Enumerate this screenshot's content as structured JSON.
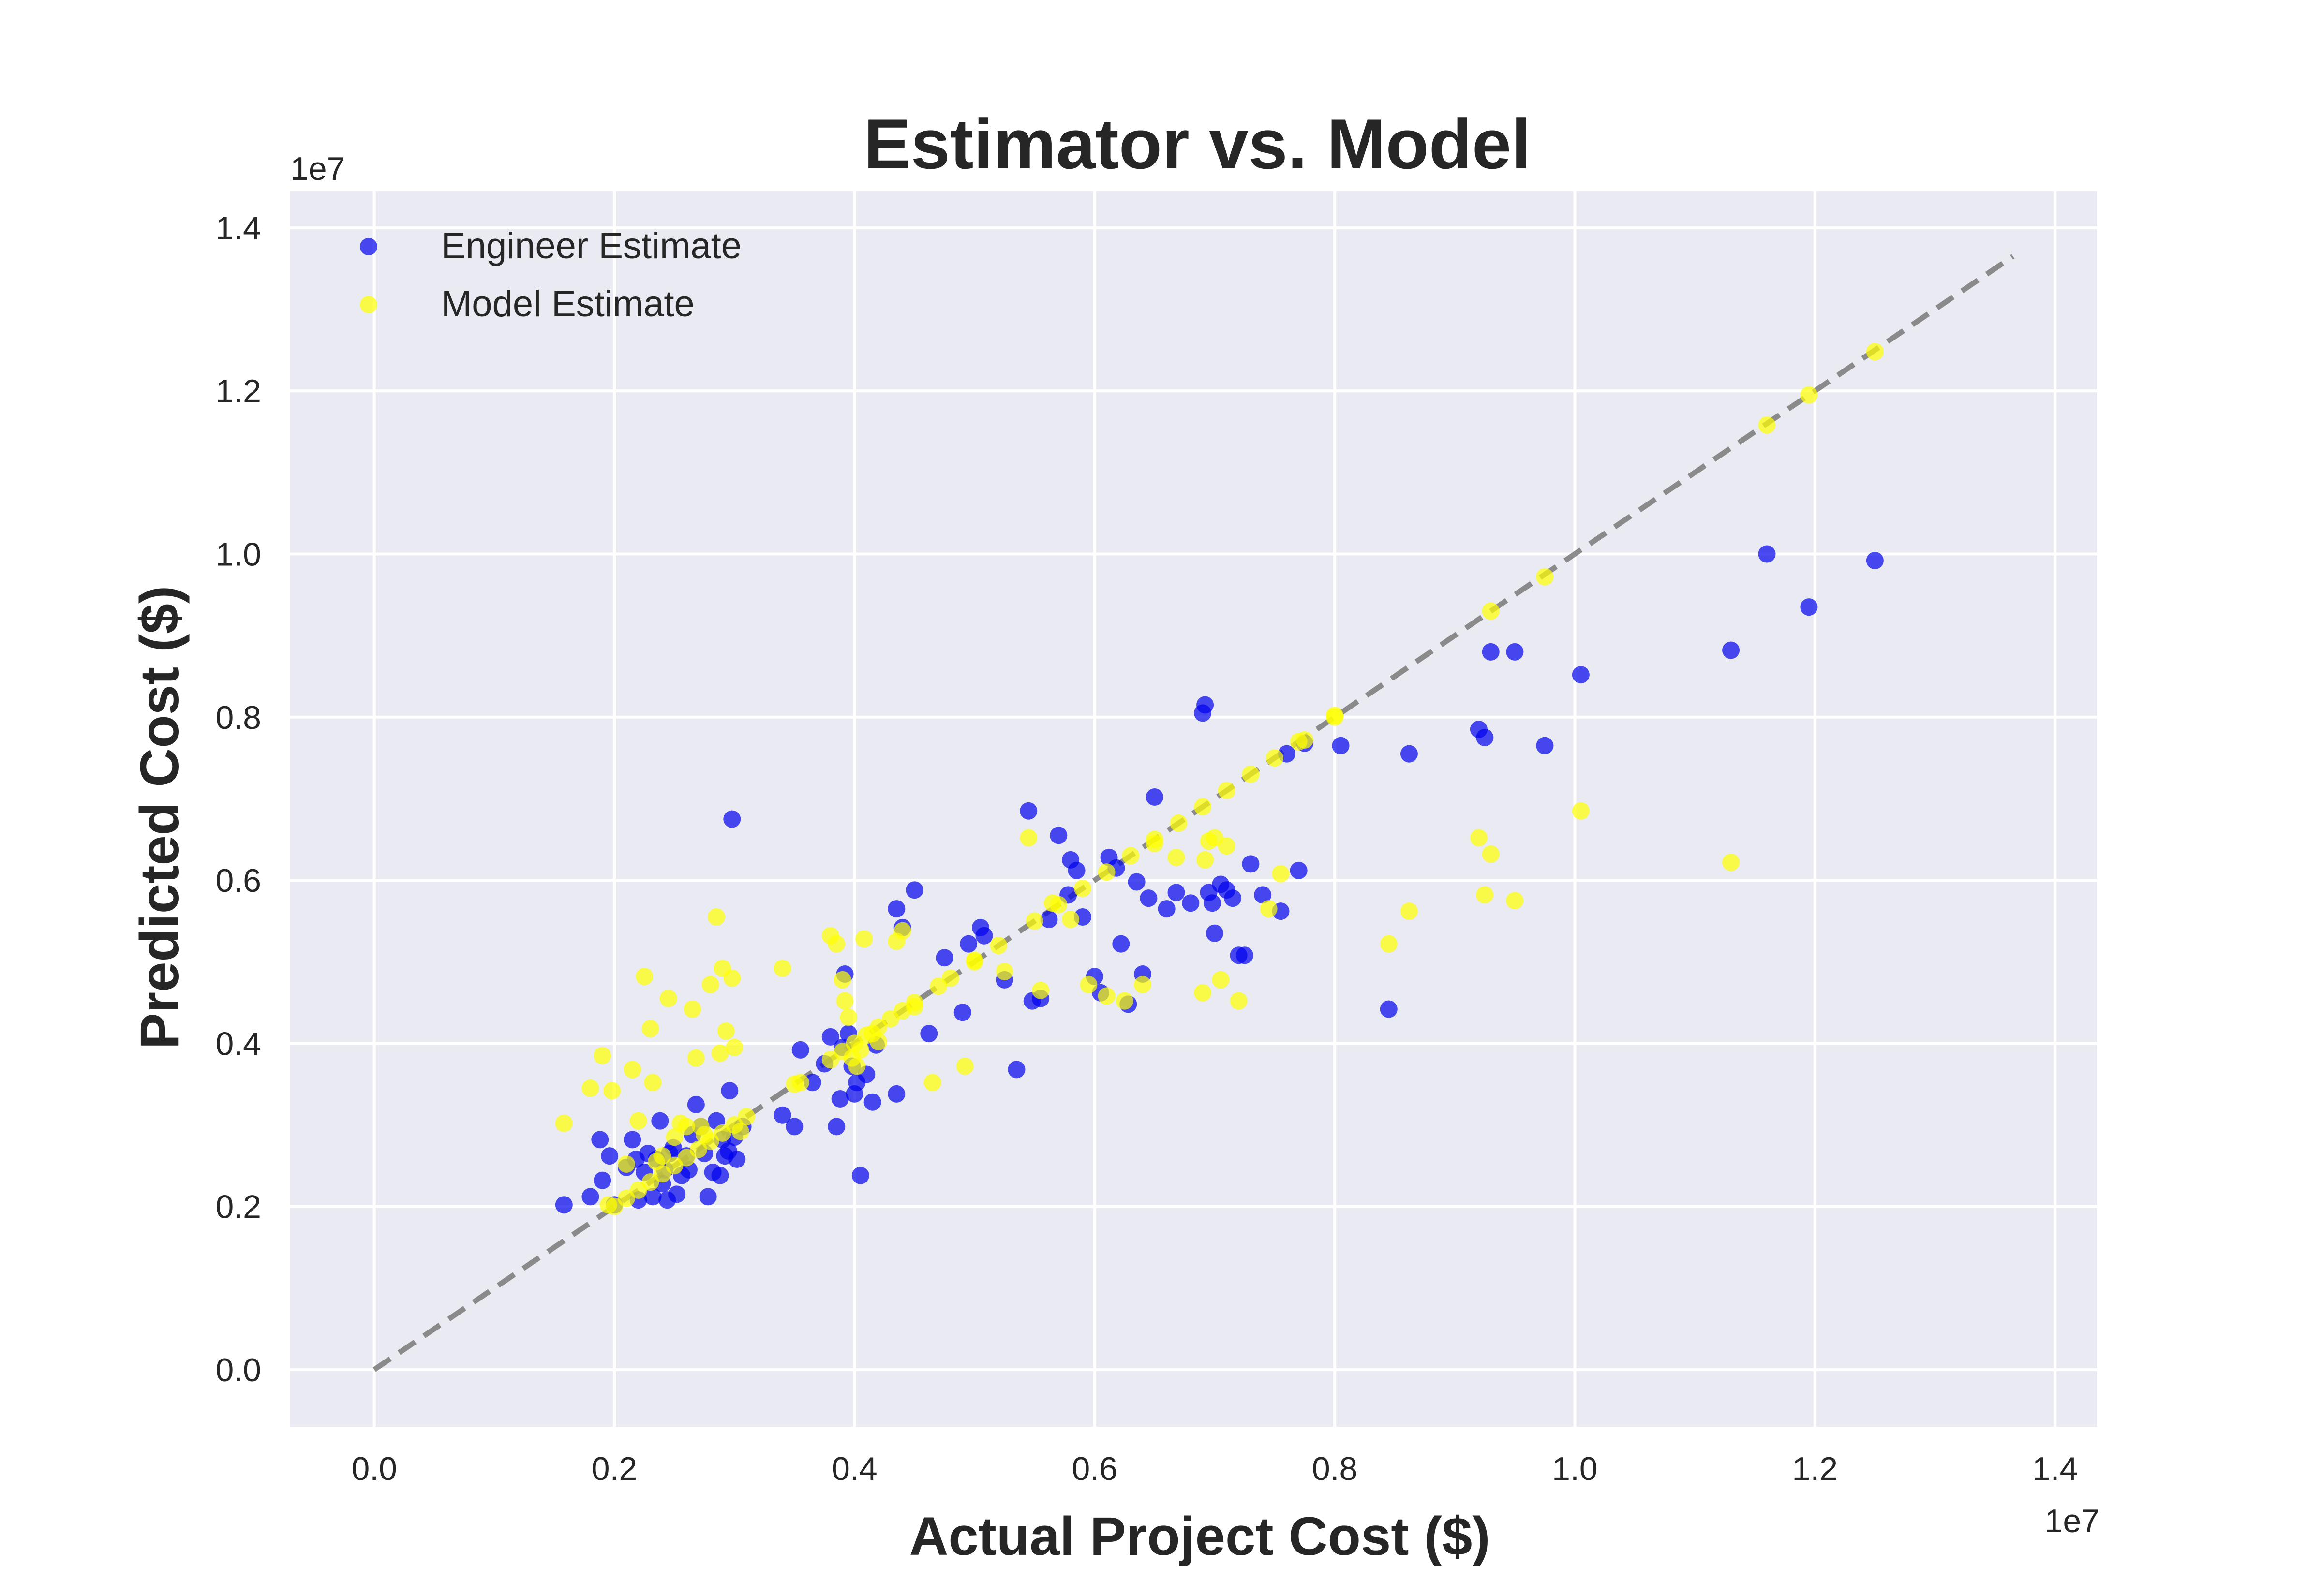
{
  "chart_data": {
    "type": "scatter",
    "title": "Estimator vs. Model",
    "xlabel": "Actual Project Cost ($)",
    "ylabel": "Predicted Cost ($)",
    "x_offset_label": "1e7",
    "y_offset_label": "1e7",
    "xlim": [
      -0.07,
      1.435
    ],
    "ylim": [
      -0.07,
      1.445
    ],
    "x_ticks": [
      0.0,
      0.2,
      0.4,
      0.6,
      0.8,
      1.0,
      1.2,
      1.4
    ],
    "y_ticks": [
      0.0,
      0.2,
      0.4,
      0.6,
      0.8,
      1.0,
      1.2,
      1.4
    ],
    "x_tick_labels": [
      "0.0",
      "0.2",
      "0.4",
      "0.6",
      "0.8",
      "1.0",
      "1.2",
      "1.4"
    ],
    "y_tick_labels": [
      "0.0",
      "0.2",
      "0.4",
      "0.6",
      "0.8",
      "1.0",
      "1.2",
      "1.4"
    ],
    "grid": true,
    "legend_position": "top-left",
    "reference_line": {
      "style": "dashed",
      "color": "#808080",
      "from": [
        0,
        0
      ],
      "to": [
        1.365,
        1.365
      ]
    },
    "series": [
      {
        "name": "Engineer Estimate",
        "color": "#0000ee",
        "points": [
          [
            0.158,
            0.202
          ],
          [
            0.18,
            0.212
          ],
          [
            0.188,
            0.282
          ],
          [
            0.19,
            0.232
          ],
          [
            0.196,
            0.262
          ],
          [
            0.2,
            0.202
          ],
          [
            0.21,
            0.248
          ],
          [
            0.215,
            0.282
          ],
          [
            0.218,
            0.258
          ],
          [
            0.22,
            0.208
          ],
          [
            0.225,
            0.242
          ],
          [
            0.228,
            0.265
          ],
          [
            0.232,
            0.212
          ],
          [
            0.235,
            0.258
          ],
          [
            0.238,
            0.305
          ],
          [
            0.24,
            0.228
          ],
          [
            0.242,
            0.245
          ],
          [
            0.244,
            0.208
          ],
          [
            0.246,
            0.265
          ],
          [
            0.249,
            0.272
          ],
          [
            0.252,
            0.215
          ],
          [
            0.256,
            0.238
          ],
          [
            0.26,
            0.262
          ],
          [
            0.262,
            0.245
          ],
          [
            0.265,
            0.288
          ],
          [
            0.268,
            0.325
          ],
          [
            0.272,
            0.298
          ],
          [
            0.275,
            0.265
          ],
          [
            0.278,
            0.212
          ],
          [
            0.282,
            0.242
          ],
          [
            0.285,
            0.305
          ],
          [
            0.288,
            0.238
          ],
          [
            0.29,
            0.282
          ],
          [
            0.292,
            0.262
          ],
          [
            0.295,
            0.268
          ],
          [
            0.296,
            0.342
          ],
          [
            0.298,
            0.675
          ],
          [
            0.3,
            0.285
          ],
          [
            0.302,
            0.258
          ],
          [
            0.307,
            0.298
          ],
          [
            0.34,
            0.312
          ],
          [
            0.35,
            0.298
          ],
          [
            0.355,
            0.392
          ],
          [
            0.365,
            0.352
          ],
          [
            0.375,
            0.375
          ],
          [
            0.38,
            0.408
          ],
          [
            0.385,
            0.298
          ],
          [
            0.388,
            0.332
          ],
          [
            0.39,
            0.395
          ],
          [
            0.392,
            0.485
          ],
          [
            0.395,
            0.412
          ],
          [
            0.398,
            0.372
          ],
          [
            0.4,
            0.338
          ],
          [
            0.402,
            0.352
          ],
          [
            0.405,
            0.238
          ],
          [
            0.41,
            0.362
          ],
          [
            0.415,
            0.328
          ],
          [
            0.418,
            0.398
          ],
          [
            0.435,
            0.338
          ],
          [
            0.435,
            0.565
          ],
          [
            0.44,
            0.542
          ],
          [
            0.45,
            0.588
          ],
          [
            0.462,
            0.412
          ],
          [
            0.475,
            0.505
          ],
          [
            0.49,
            0.438
          ],
          [
            0.495,
            0.522
          ],
          [
            0.505,
            0.542
          ],
          [
            0.508,
            0.532
          ],
          [
            0.525,
            0.478
          ],
          [
            0.535,
            0.368
          ],
          [
            0.545,
            0.685
          ],
          [
            0.548,
            0.452
          ],
          [
            0.555,
            0.455
          ],
          [
            0.562,
            0.552
          ],
          [
            0.57,
            0.655
          ],
          [
            0.578,
            0.582
          ],
          [
            0.58,
            0.625
          ],
          [
            0.585,
            0.612
          ],
          [
            0.59,
            0.555
          ],
          [
            0.6,
            0.482
          ],
          [
            0.605,
            0.462
          ],
          [
            0.612,
            0.628
          ],
          [
            0.618,
            0.615
          ],
          [
            0.622,
            0.522
          ],
          [
            0.628,
            0.448
          ],
          [
            0.635,
            0.598
          ],
          [
            0.64,
            0.485
          ],
          [
            0.645,
            0.578
          ],
          [
            0.65,
            0.702
          ],
          [
            0.66,
            0.565
          ],
          [
            0.668,
            0.585
          ],
          [
            0.68,
            0.572
          ],
          [
            0.69,
            0.805
          ],
          [
            0.692,
            0.815
          ],
          [
            0.695,
            0.585
          ],
          [
            0.698,
            0.572
          ],
          [
            0.7,
            0.535
          ],
          [
            0.705,
            0.595
          ],
          [
            0.71,
            0.588
          ],
          [
            0.715,
            0.578
          ],
          [
            0.72,
            0.508
          ],
          [
            0.725,
            0.508
          ],
          [
            0.73,
            0.62
          ],
          [
            0.74,
            0.582
          ],
          [
            0.755,
            0.562
          ],
          [
            0.76,
            0.755
          ],
          [
            0.77,
            0.612
          ],
          [
            0.775,
            0.768
          ],
          [
            0.805,
            0.765
          ],
          [
            0.845,
            0.442
          ],
          [
            0.862,
            0.755
          ],
          [
            0.92,
            0.785
          ],
          [
            0.925,
            0.775
          ],
          [
            0.93,
            0.88
          ],
          [
            0.95,
            0.88
          ],
          [
            0.975,
            0.765
          ],
          [
            1.005,
            0.852
          ],
          [
            1.13,
            0.882
          ],
          [
            1.16,
            1.0
          ],
          [
            1.195,
            0.935
          ],
          [
            1.25,
            0.992
          ]
        ]
      },
      {
        "name": "Model Estimate",
        "color": "#ffff00",
        "points": [
          [
            0.158,
            0.302
          ],
          [
            0.18,
            0.345
          ],
          [
            0.19,
            0.385
          ],
          [
            0.195,
            0.202
          ],
          [
            0.198,
            0.342
          ],
          [
            0.21,
            0.252
          ],
          [
            0.215,
            0.368
          ],
          [
            0.22,
            0.305
          ],
          [
            0.225,
            0.482
          ],
          [
            0.23,
            0.418
          ],
          [
            0.232,
            0.352
          ],
          [
            0.235,
            0.255
          ],
          [
            0.24,
            0.262
          ],
          [
            0.245,
            0.455
          ],
          [
            0.25,
            0.285
          ],
          [
            0.255,
            0.302
          ],
          [
            0.26,
            0.298
          ],
          [
            0.265,
            0.442
          ],
          [
            0.268,
            0.382
          ],
          [
            0.272,
            0.298
          ],
          [
            0.275,
            0.288
          ],
          [
            0.28,
            0.472
          ],
          [
            0.285,
            0.555
          ],
          [
            0.288,
            0.388
          ],
          [
            0.29,
            0.492
          ],
          [
            0.293,
            0.415
          ],
          [
            0.298,
            0.48
          ],
          [
            0.3,
            0.395
          ],
          [
            0.305,
            0.292
          ],
          [
            0.34,
            0.492
          ],
          [
            0.355,
            0.352
          ],
          [
            0.38,
            0.532
          ],
          [
            0.385,
            0.522
          ],
          [
            0.39,
            0.478
          ],
          [
            0.392,
            0.452
          ],
          [
            0.395,
            0.432
          ],
          [
            0.398,
            0.382
          ],
          [
            0.402,
            0.372
          ],
          [
            0.405,
            0.392
          ],
          [
            0.408,
            0.528
          ],
          [
            0.415,
            0.412
          ],
          [
            0.42,
            0.402
          ],
          [
            0.435,
            0.525
          ],
          [
            0.44,
            0.538
          ],
          [
            0.45,
            0.445
          ],
          [
            0.465,
            0.352
          ],
          [
            0.492,
            0.372
          ],
          [
            0.5,
            0.502
          ],
          [
            0.525,
            0.488
          ],
          [
            0.545,
            0.652
          ],
          [
            0.555,
            0.465
          ],
          [
            0.565,
            0.572
          ],
          [
            0.58,
            0.552
          ],
          [
            0.595,
            0.472
          ],
          [
            0.61,
            0.458
          ],
          [
            0.625,
            0.452
          ],
          [
            0.64,
            0.472
          ],
          [
            0.65,
            0.645
          ],
          [
            0.668,
            0.628
          ],
          [
            0.69,
            0.462
          ],
          [
            0.692,
            0.625
          ],
          [
            0.695,
            0.648
          ],
          [
            0.7,
            0.652
          ],
          [
            0.705,
            0.478
          ],
          [
            0.71,
            0.642
          ],
          [
            0.72,
            0.452
          ],
          [
            0.745,
            0.565
          ],
          [
            0.755,
            0.608
          ],
          [
            0.775,
            0.772
          ],
          [
            0.8,
            0.802
          ],
          [
            0.845,
            0.522
          ],
          [
            0.862,
            0.562
          ],
          [
            0.92,
            0.652
          ],
          [
            0.925,
            0.582
          ],
          [
            0.93,
            0.632
          ],
          [
            0.95,
            0.575
          ],
          [
            0.975,
            0.972
          ],
          [
            1.005,
            0.685
          ],
          [
            1.13,
            0.622
          ],
          [
            1.16,
            1.158
          ],
          [
            1.195,
            1.195
          ],
          [
            1.25,
            1.248
          ]
        ],
        "on_line_x": [
          0.2,
          0.21,
          0.22,
          0.23,
          0.24,
          0.25,
          0.26,
          0.27,
          0.28,
          0.29,
          0.3,
          0.31,
          0.35,
          0.38,
          0.39,
          0.4,
          0.41,
          0.42,
          0.43,
          0.44,
          0.45,
          0.47,
          0.48,
          0.5,
          0.52,
          0.55,
          0.57,
          0.59,
          0.61,
          0.63,
          0.65,
          0.67,
          0.69,
          0.71,
          0.73,
          0.75,
          0.77,
          0.8,
          0.93
        ]
      }
    ]
  }
}
